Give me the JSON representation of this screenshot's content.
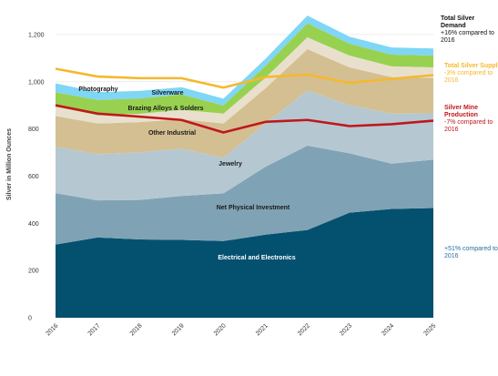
{
  "chart_data": {
    "type": "area",
    "ylabel": "Silver in Million Ounces",
    "xlabel": "",
    "ylim": [
      0,
      1300
    ],
    "yticks": [
      0,
      200,
      400,
      600,
      800,
      1000,
      1200
    ],
    "ytick_labels": [
      "0",
      "200",
      "400",
      "600",
      "800",
      "1,000",
      "1,200"
    ],
    "categories": [
      "2016",
      "2017",
      "2018",
      "2019",
      "2020",
      "2021",
      "2022",
      "2023",
      "2024",
      "2025"
    ],
    "grid": true,
    "stack": [
      {
        "name": "Electrical and Electronics",
        "color": "#04506f",
        "values": [
          310,
          340,
          332,
          330,
          325,
          352,
          372,
          445,
          461,
          465
        ]
      },
      {
        "name": "Net Physical Investment",
        "color": "#7fa3b4",
        "values": [
          218,
          157,
          167,
          186,
          202,
          288,
          357,
          252,
          192,
          205
        ]
      },
      {
        "name": "Jewelry",
        "color": "#b5c8d2",
        "values": [
          197,
          196,
          202,
          200,
          151,
          182,
          234,
          204,
          212,
          196
        ]
      },
      {
        "name": "Other Industrial",
        "color": "#d4bf92",
        "values": [
          130,
          130,
          128,
          125,
          145,
          150,
          175,
          160,
          155,
          150
        ]
      },
      {
        "name": "Brazing Alloys & Solders",
        "color": "#e8e0cc",
        "values": [
          40,
          35,
          35,
          40,
          42,
          45,
          50,
          50,
          45,
          45
        ]
      },
      {
        "name": "Silverware",
        "color": "#98d150",
        "values": [
          60,
          65,
          65,
          65,
          35,
          50,
          60,
          50,
          50,
          50
        ]
      },
      {
        "name": "Photography",
        "color": "#7fd6f5",
        "values": [
          38,
          33,
          32,
          31,
          28,
          30,
          32,
          30,
          30,
          30
        ]
      }
    ],
    "lines": [
      {
        "name": "Total Silver Supply",
        "color": "#f5b82e",
        "values": [
          1055,
          1022,
          1015,
          1015,
          975,
          1020,
          1030,
          995,
          1012,
          1028
        ]
      },
      {
        "name": "Silver Mine Production",
        "color": "#c0171c",
        "values": [
          900,
          865,
          852,
          838,
          785,
          830,
          838,
          812,
          820,
          835
        ]
      }
    ],
    "annotations": {
      "demand": {
        "title": "Total Silver Demand",
        "sub": "+16% compared to 2016",
        "color": "#111111"
      },
      "supply": {
        "title": "Total Silver Supply",
        "sub": "-3% compared to 2016",
        "color": "#f5b82e"
      },
      "mine": {
        "title": "Silver Mine Production",
        "sub": "-7% compared to 2016",
        "color": "#c0171c"
      },
      "electrical": {
        "title": "",
        "sub": "+51% compared to 2016",
        "color": "#2a6fa3"
      }
    }
  }
}
